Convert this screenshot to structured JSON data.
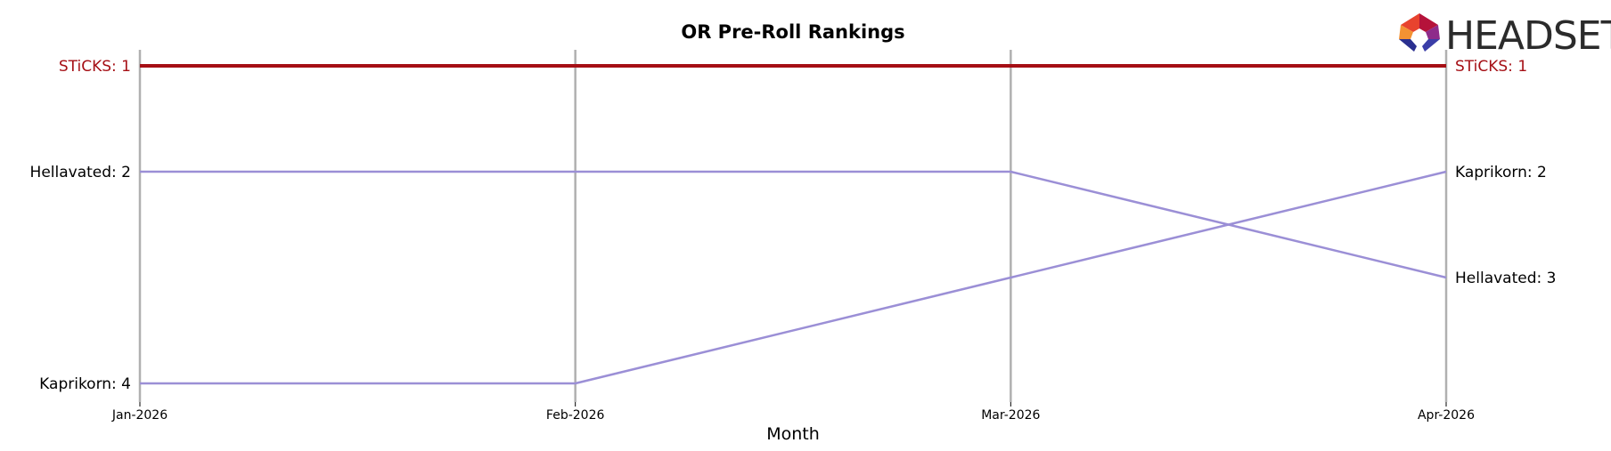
{
  "chart_data": {
    "type": "line",
    "title": "OR Pre-Roll Rankings",
    "xlabel": "Month",
    "ylabel": "",
    "x": [
      "Jan-2026",
      "Feb-2026",
      "Mar-2026",
      "Apr-2026"
    ],
    "ylim": [
      4,
      1
    ],
    "y_inverted": true,
    "grid": "vertical",
    "legend": "none",
    "series": [
      {
        "name": "STiCKS",
        "values": [
          1,
          1,
          1,
          1
        ],
        "color": "#a50f15",
        "highlight": true,
        "start_label": "STiCKS: 1",
        "end_label": "STiCKS: 1"
      },
      {
        "name": "Hellavated",
        "values": [
          2,
          2,
          2,
          3
        ],
        "color": "#9b8fd6",
        "highlight": false,
        "start_label": "Hellavated: 2",
        "end_label": "Hellavated: 3"
      },
      {
        "name": "Kaprikorn",
        "values": [
          4,
          4,
          3,
          2
        ],
        "color": "#9b8fd6",
        "highlight": false,
        "start_label": "Kaprikorn: 4",
        "end_label": "Kaprikorn: 2"
      }
    ]
  },
  "logo": {
    "text": "HEADSET",
    "icon": "headset-hexagon-logo"
  }
}
